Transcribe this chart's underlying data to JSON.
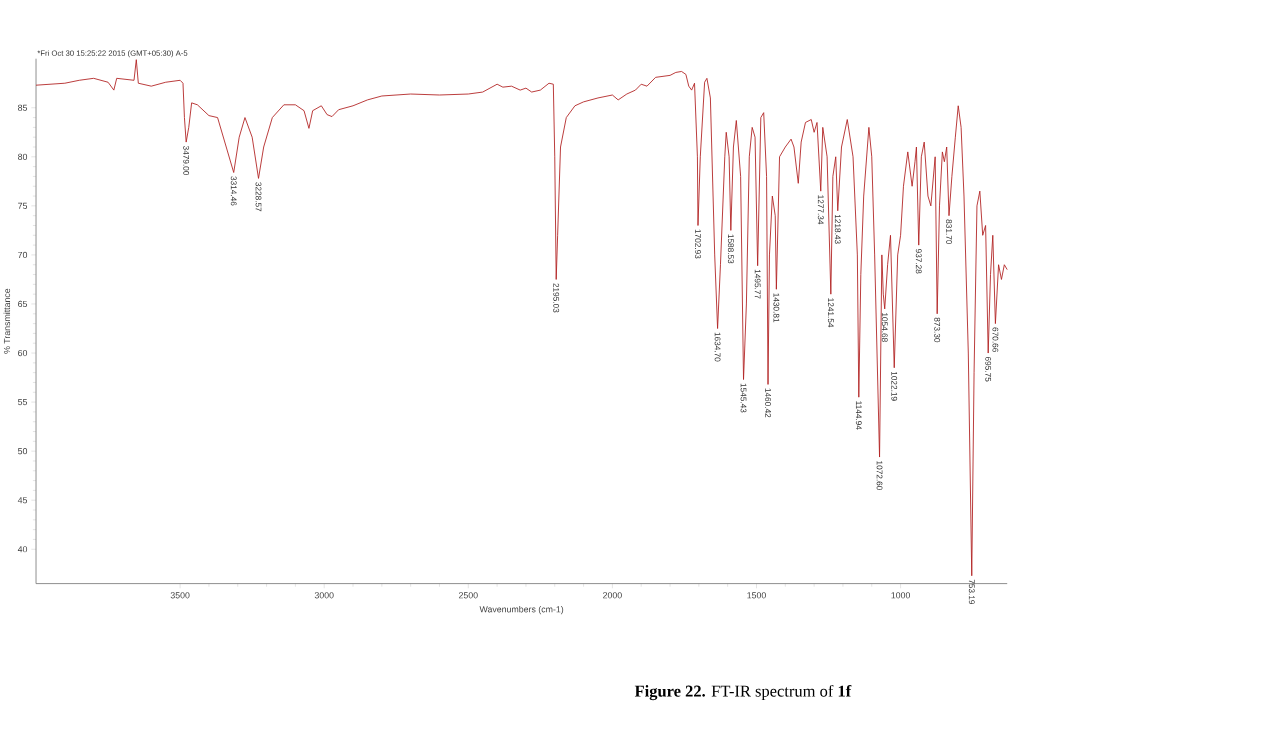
{
  "chart_data": {
    "type": "line",
    "title": "**Figure 22.** FT-IR spectrum of **1f**",
    "xlabel": "Wavenumbers (cm-1)",
    "ylabel": "% Transmittance",
    "xlim": [
      4000,
      630
    ],
    "ylim": [
      36.5,
      90
    ],
    "xticks": [
      3500,
      3000,
      2500,
      2000,
      1500,
      1000
    ],
    "yticks": [
      40,
      45,
      50,
      55,
      60,
      65,
      70,
      75,
      80,
      85
    ],
    "series": [
      {
        "color": "#b22222",
        "x": [
          4000,
          3900,
          3850,
          3800,
          3750,
          3730,
          3720,
          3660,
          3652,
          3645,
          3600,
          3550,
          3500,
          3490,
          3485,
          3479,
          3470,
          3460,
          3440,
          3400,
          3370,
          3340,
          3314,
          3295,
          3275,
          3250,
          3228,
          3210,
          3180,
          3140,
          3100,
          3070,
          3053,
          3040,
          3010,
          2990,
          2973,
          2950,
          2900,
          2850,
          2800,
          2700,
          2600,
          2500,
          2450,
          2400,
          2380,
          2350,
          2320,
          2300,
          2280,
          2250,
          2220,
          2205,
          2200,
          2195,
          2190,
          2180,
          2160,
          2130,
          2100,
          2050,
          2000,
          1980,
          1950,
          1920,
          1900,
          1880,
          1850,
          1800,
          1780,
          1760,
          1745,
          1735,
          1725,
          1715,
          1705,
          1703,
          1695,
          1680,
          1672,
          1660,
          1645,
          1635,
          1625,
          1610,
          1605,
          1595,
          1589,
          1580,
          1570,
          1555,
          1545,
          1535,
          1525,
          1515,
          1505,
          1496,
          1485,
          1475,
          1465,
          1460,
          1455,
          1445,
          1435,
          1431,
          1420,
          1400,
          1380,
          1370,
          1355,
          1345,
          1330,
          1310,
          1300,
          1290,
          1277,
          1270,
          1255,
          1242,
          1235,
          1225,
          1218,
          1205,
          1185,
          1165,
          1150,
          1145,
          1138,
          1128,
          1110,
          1100,
          1090,
          1073,
          1065,
          1060,
          1055,
          1045,
          1035,
          1022,
          1010,
          1000,
          990,
          975,
          960,
          950,
          945,
          937,
          928,
          918,
          905,
          895,
          880,
          873,
          865,
          855,
          848,
          840,
          832,
          822,
          810,
          800,
          790,
          780,
          765,
          753,
          745,
          735,
          725,
          715,
          705,
          696,
          688,
          680,
          671,
          660,
          650,
          640,
          630
        ],
        "values": [
          87.3,
          87.5,
          87.8,
          88,
          87.6,
          86.8,
          88,
          87.8,
          89.9,
          87.5,
          87.2,
          87.6,
          87.8,
          87.5,
          84,
          81.5,
          83,
          85.5,
          85.3,
          84.2,
          84,
          81,
          78.4,
          82,
          84,
          82,
          77.8,
          81,
          84,
          85.3,
          85.3,
          84.7,
          82.9,
          84.7,
          85.2,
          84.3,
          84.1,
          84.8,
          85.2,
          85.8,
          86.2,
          86.4,
          86.3,
          86.4,
          86.6,
          87.4,
          87.1,
          87.2,
          86.8,
          87,
          86.6,
          86.8,
          87.5,
          87.4,
          80,
          67.5,
          72,
          81,
          84,
          85.2,
          85.6,
          86,
          86.3,
          85.8,
          86.4,
          86.8,
          87.4,
          87.2,
          88.1,
          88.3,
          88.6,
          88.7,
          88.4,
          87.2,
          86.8,
          87.5,
          80,
          73,
          80,
          87.6,
          88,
          86,
          70,
          62.5,
          69,
          80,
          82.5,
          80,
          72.5,
          81,
          83.7,
          78,
          57.3,
          65,
          80,
          83,
          82,
          68.9,
          84,
          84.5,
          78,
          56.8,
          70,
          76,
          74,
          66.5,
          80,
          81,
          81.8,
          81,
          77.3,
          81.5,
          83.5,
          83.8,
          82.5,
          83.5,
          76.5,
          83,
          80,
          66,
          78,
          80,
          74.5,
          81,
          83.8,
          80,
          70,
          55.5,
          68,
          76,
          83,
          80,
          70,
          49.4,
          70,
          66,
          64.5,
          69,
          72,
          58.5,
          70,
          72,
          77,
          80.5,
          77,
          79.5,
          81,
          71,
          80,
          81.5,
          76,
          75,
          80,
          64,
          75,
          80.5,
          79.5,
          81,
          74,
          78,
          82,
          85.2,
          83,
          76,
          60,
          37.3,
          58,
          75,
          76.5,
          72,
          73,
          60,
          68,
          72,
          63,
          69,
          67.5,
          69,
          68.5
        ]
      }
    ],
    "annotations": [
      "*Fri Oct 30 15:25:22 2015 (GMT+05:30) A-5",
      {
        "text": "3479.00",
        "x": 3479,
        "y": 81.5
      },
      {
        "text": "3314.46",
        "x": 3314,
        "y": 78.4
      },
      {
        "text": "3228.57",
        "x": 3228,
        "y": 77.8
      },
      {
        "text": "2195.03",
        "x": 2195,
        "y": 67.5
      },
      {
        "text": "1702.93",
        "x": 1703,
        "y": 73
      },
      {
        "text": "1634.70",
        "x": 1635,
        "y": 62.5
      },
      {
        "text": "1588.53",
        "x": 1589,
        "y": 72.5
      },
      {
        "text": "1545.43",
        "x": 1545,
        "y": 57.3
      },
      {
        "text": "1495.77",
        "x": 1496,
        "y": 68.9
      },
      {
        "text": "1460.42",
        "x": 1460,
        "y": 56.8
      },
      {
        "text": "1430.81",
        "x": 1431,
        "y": 66.5
      },
      {
        "text": "1277.34",
        "x": 1277,
        "y": 76.5
      },
      {
        "text": "1241.54",
        "x": 1242,
        "y": 66
      },
      {
        "text": "1218.43",
        "x": 1218,
        "y": 74.5
      },
      {
        "text": "1144.94",
        "x": 1145,
        "y": 55.5
      },
      {
        "text": "1072.60",
        "x": 1073,
        "y": 49.4
      },
      {
        "text": "1054.68",
        "x": 1055,
        "y": 64.5
      },
      {
        "text": "1022.19",
        "x": 1022,
        "y": 58.5
      },
      {
        "text": "937.28",
        "x": 937,
        "y": 71
      },
      {
        "text": "873.30",
        "x": 873,
        "y": 64
      },
      {
        "text": "831.70",
        "x": 832,
        "y": 74
      },
      {
        "text": "753.19",
        "x": 753,
        "y": 37.3
      },
      {
        "text": "695.75",
        "x": 696,
        "y": 60
      },
      {
        "text": "670.66",
        "x": 671,
        "y": 63
      }
    ]
  }
}
